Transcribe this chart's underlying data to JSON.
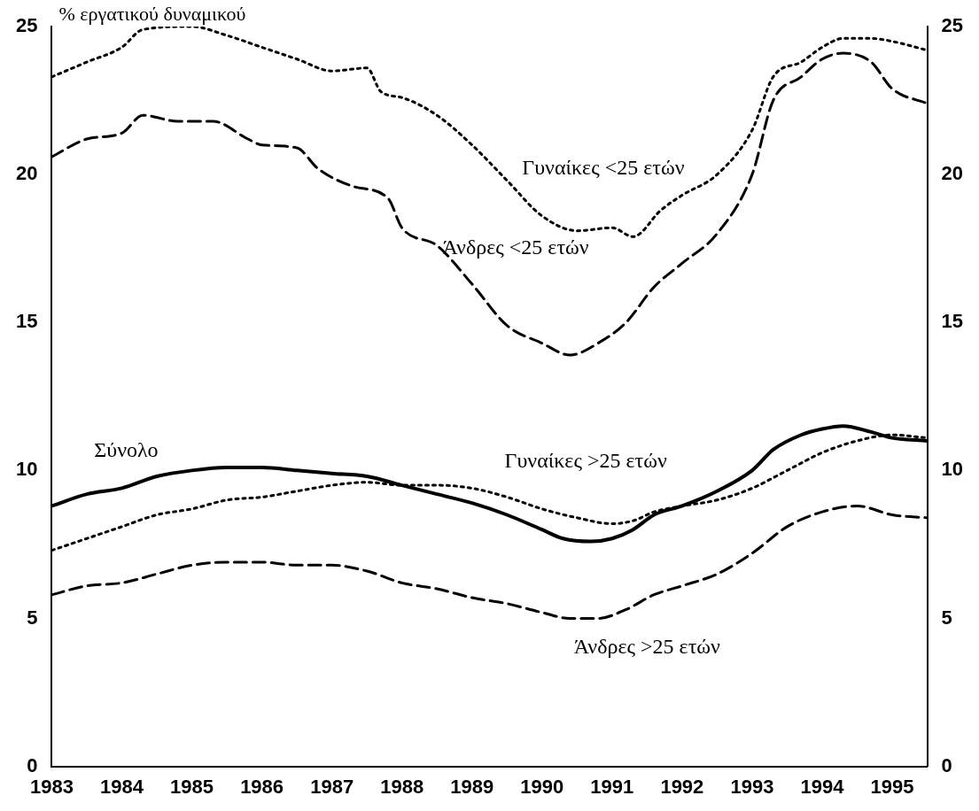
{
  "chart_data": {
    "type": "line",
    "ylabel": "% εργατικού δυναμικού",
    "xlim": [
      1983,
      1995.5
    ],
    "xticks": [
      1983,
      1984,
      1985,
      1986,
      1987,
      1988,
      1989,
      1990,
      1991,
      1992,
      1993,
      1994,
      1995
    ],
    "ylim": [
      0,
      25
    ],
    "yticks": [
      0,
      5,
      10,
      15,
      20,
      25
    ],
    "y2lim": [
      0,
      25
    ],
    "y2ticks": [
      0,
      5,
      10,
      15,
      20,
      25
    ],
    "grid": false,
    "legend": false,
    "marker": "none",
    "series": [
      {
        "name": "Σύνολο",
        "color": "#000000",
        "line_style": "solid",
        "x": [
          1983,
          1983.5,
          1984,
          1984.5,
          1985,
          1985.5,
          1986,
          1986.5,
          1987,
          1987.5,
          1988,
          1988.5,
          1989,
          1989.5,
          1990,
          1990.3,
          1990.7,
          1991,
          1991.3,
          1991.6,
          1992,
          1992.5,
          1993,
          1993.3,
          1993.7,
          1994,
          1994.3,
          1994.7,
          1995,
          1995.5
        ],
        "values": [
          8.8,
          9.2,
          9.4,
          9.8,
          10.0,
          10.1,
          10.1,
          10.0,
          9.9,
          9.8,
          9.5,
          9.2,
          8.9,
          8.5,
          8.0,
          7.7,
          7.6,
          7.7,
          8.0,
          8.5,
          8.8,
          9.3,
          10.0,
          10.7,
          11.2,
          11.4,
          11.5,
          11.3,
          11.1,
          11.0
        ]
      },
      {
        "name": "Γυναίκες >25 ετών",
        "color": "#000000",
        "line_style": "dotted",
        "x": [
          1983,
          1983.5,
          1984,
          1984.5,
          1985,
          1985.5,
          1986,
          1986.5,
          1987,
          1987.5,
          1988,
          1988.5,
          1989,
          1989.5,
          1990,
          1990.5,
          1991,
          1991.3,
          1991.6,
          1992,
          1992.5,
          1993,
          1993.5,
          1994,
          1994.5,
          1995,
          1995.5
        ],
        "values": [
          7.3,
          7.7,
          8.1,
          8.5,
          8.7,
          9.0,
          9.1,
          9.3,
          9.5,
          9.6,
          9.5,
          9.5,
          9.4,
          9.1,
          8.7,
          8.4,
          8.2,
          8.3,
          8.6,
          8.8,
          9.0,
          9.4,
          10.0,
          10.6,
          11.0,
          11.2,
          11.1
        ]
      },
      {
        "name": "Άνδρες >25 ετών",
        "color": "#000000",
        "line_style": "dashed",
        "x": [
          1983,
          1983.5,
          1984,
          1984.5,
          1985,
          1985.5,
          1986,
          1986.5,
          1987,
          1987.5,
          1988,
          1988.5,
          1989,
          1989.5,
          1990,
          1990.4,
          1990.8,
          1991.2,
          1991.6,
          1992,
          1992.5,
          1993,
          1993.5,
          1994,
          1994.5,
          1995,
          1995.5
        ],
        "values": [
          5.8,
          6.1,
          6.2,
          6.5,
          6.8,
          6.9,
          6.9,
          6.8,
          6.8,
          6.6,
          6.2,
          6.0,
          5.7,
          5.5,
          5.2,
          5.0,
          5.0,
          5.3,
          5.8,
          6.1,
          6.5,
          7.2,
          8.1,
          8.6,
          8.8,
          8.5,
          8.4
        ]
      },
      {
        "name": "Γυναίκες <25 ετών",
        "color": "#000000",
        "line_style": "dotted",
        "x": [
          1983,
          1983.5,
          1984,
          1984.3,
          1985,
          1985.5,
          1986,
          1986.5,
          1987,
          1987.5,
          1987.7,
          1988,
          1988.5,
          1989,
          1989.5,
          1990,
          1990.5,
          1991,
          1991.3,
          1991.7,
          1992,
          1992.5,
          1993,
          1993.3,
          1993.7,
          1994,
          1994.3,
          1994.7,
          1995,
          1995.5
        ],
        "values": [
          23.3,
          23.8,
          24.3,
          24.9,
          25.0,
          24.7,
          24.3,
          23.9,
          23.5,
          23.6,
          22.8,
          22.6,
          22.0,
          21.0,
          19.8,
          18.6,
          18.1,
          18.2,
          17.9,
          18.8,
          19.3,
          20.0,
          21.5,
          23.3,
          23.8,
          24.3,
          24.6,
          24.6,
          24.5,
          24.2
        ]
      },
      {
        "name": "Άνδρες <25 ετών",
        "color": "#000000",
        "line_style": "dashed",
        "x": [
          1983,
          1983.5,
          1984,
          1984.3,
          1984.8,
          1985.3,
          1985.8,
          1986,
          1986.5,
          1986.8,
          1987.3,
          1987.8,
          1988,
          1988.5,
          1989,
          1989.5,
          1990,
          1990.4,
          1990.8,
          1991.2,
          1991.6,
          1992,
          1992.5,
          1993,
          1993.3,
          1993.7,
          1994,
          1994.3,
          1994.7,
          1995,
          1995.5
        ],
        "values": [
          20.6,
          21.2,
          21.4,
          22.0,
          21.8,
          21.8,
          21.2,
          21.0,
          20.9,
          20.2,
          19.6,
          19.2,
          18.2,
          17.6,
          16.3,
          14.9,
          14.3,
          13.9,
          14.3,
          15.0,
          16.2,
          17.0,
          18.0,
          20.0,
          22.5,
          23.3,
          23.9,
          24.1,
          23.8,
          22.9,
          22.4
        ]
      }
    ]
  }
}
